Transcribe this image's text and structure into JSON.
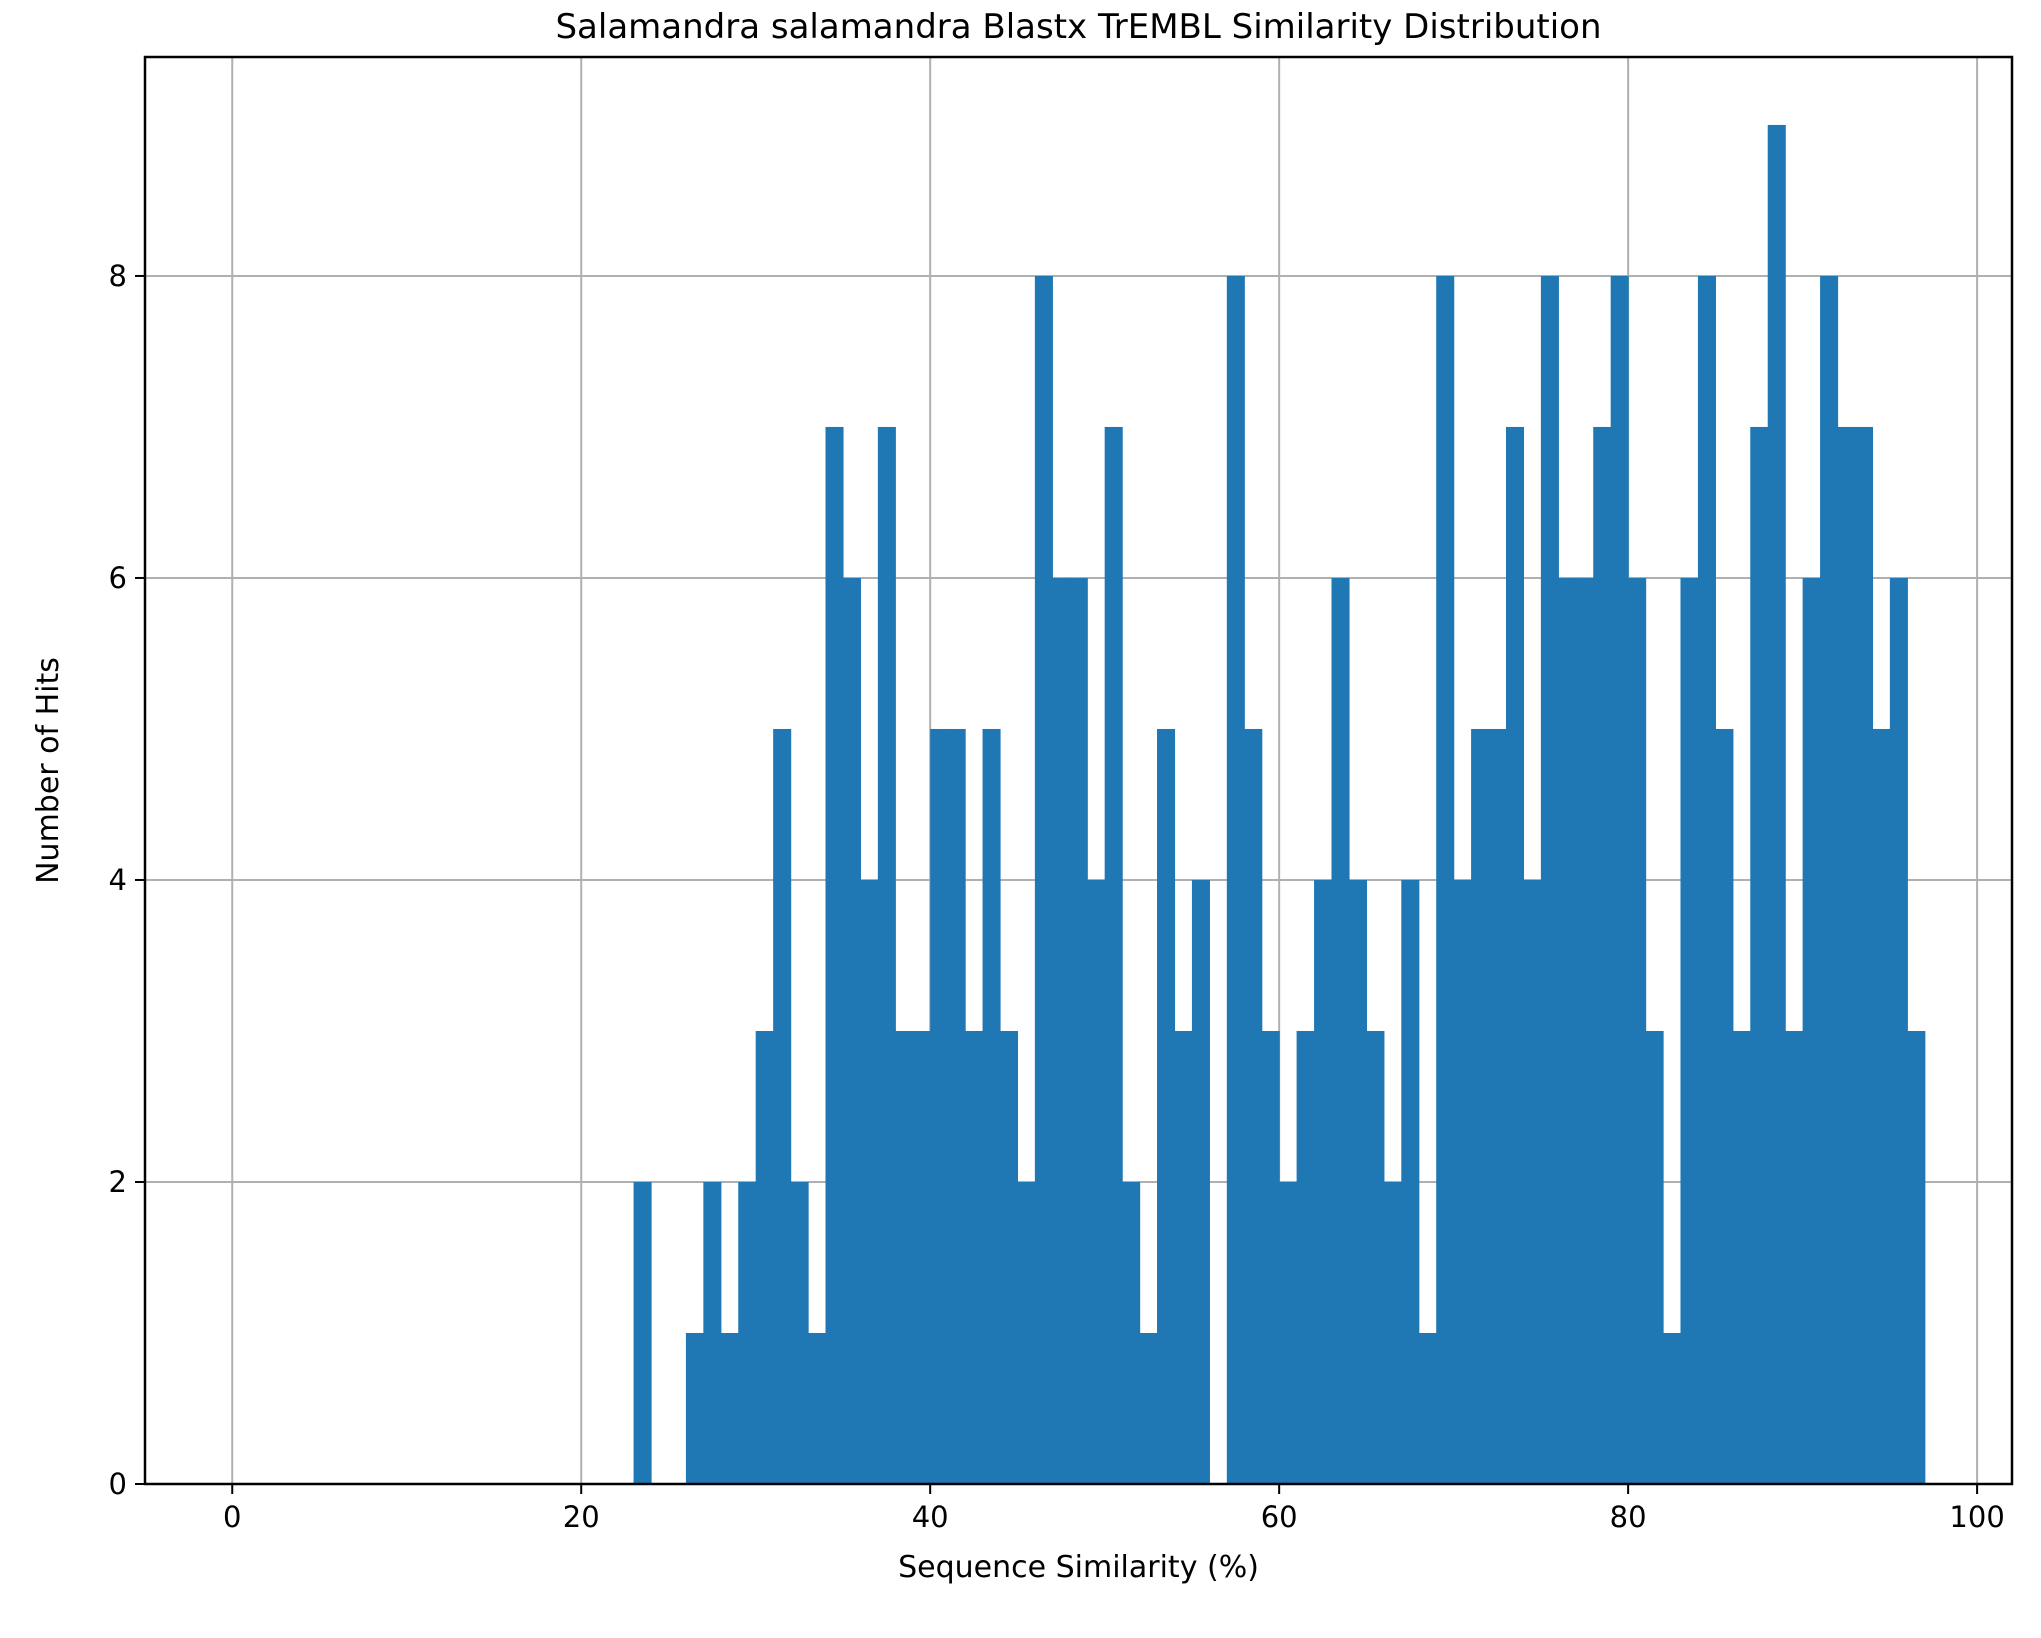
{
  "chart_data": {
    "type": "bar",
    "title": "Salamandra salamandra Blastx TrEMBL Similarity Distribution",
    "xlabel": "Sequence Similarity (%)",
    "ylabel": "Number of Hits",
    "xlim": [
      -5,
      102
    ],
    "ylim": [
      0,
      9.45
    ],
    "xticks": [
      0,
      20,
      40,
      60,
      80,
      100
    ],
    "yticks": [
      0,
      2,
      4,
      6,
      8
    ],
    "grid": true,
    "legend": "none",
    "bar_color": "#1f77b4",
    "bin_start": 0,
    "bin_width": 1,
    "values": [
      0,
      0,
      0,
      0,
      0,
      0,
      0,
      0,
      0,
      0,
      0,
      0,
      0,
      0,
      0,
      0,
      0,
      0,
      0,
      0,
      0,
      0,
      0,
      2,
      0,
      0,
      1,
      2,
      1,
      2,
      3,
      5,
      2,
      1,
      7,
      6,
      4,
      7,
      3,
      3,
      5,
      5,
      3,
      5,
      3,
      2,
      8,
      6,
      6,
      4,
      7,
      2,
      1,
      5,
      3,
      4,
      0,
      8,
      5,
      3,
      2,
      3,
      4,
      6,
      4,
      3,
      2,
      4,
      1,
      8,
      4,
      5,
      5,
      7,
      4,
      8,
      6,
      6,
      7,
      8,
      6,
      3,
      1,
      6,
      8,
      5,
      3,
      7,
      9,
      3,
      6,
      8,
      7,
      7,
      5,
      6,
      3,
      0,
      0,
      0
    ]
  }
}
